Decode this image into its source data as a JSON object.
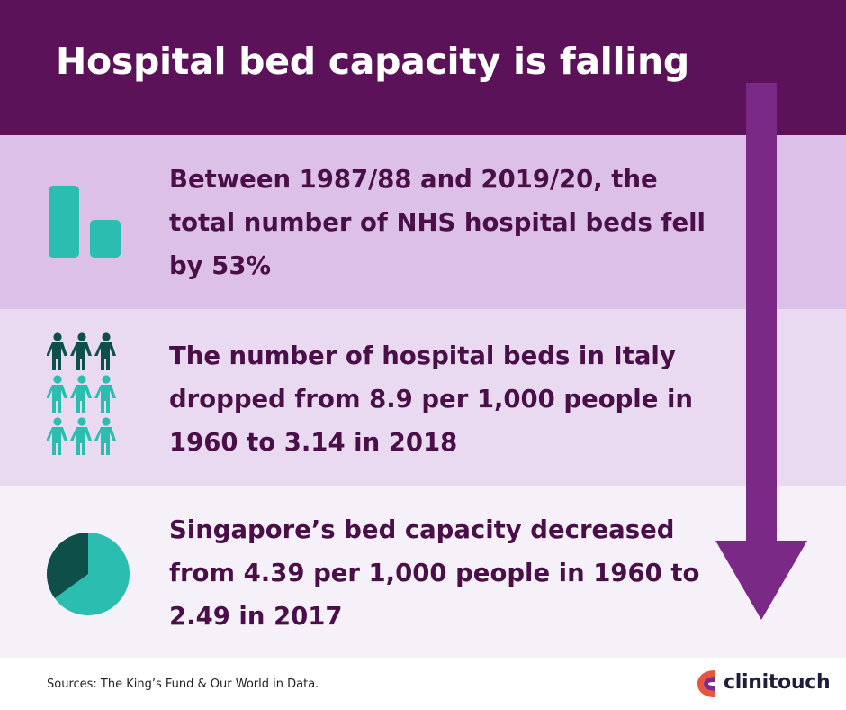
{
  "header": {
    "title": "Hospital bed capacity is falling"
  },
  "stats": [
    {
      "text": "Between 1987/88 and 2019/20, the total number of NHS hospital beds fell by 53%",
      "icon": "bar-chart-icon"
    },
    {
      "text": "The number of hospital beds in Italy dropped from 8.9 per 1,000 people in 1960 to 3.14 in 2018",
      "icon": "people-grid-icon"
    },
    {
      "text": "Singapore’s bed capacity decreased from 4.39 per 1,000 people in 1960 to 2.49 in 2017",
      "icon": "pie-chart-icon"
    }
  ],
  "footer": {
    "sources": "Sources: The King’s Fund & Our World in Data.",
    "brand": "clinitouch"
  },
  "colors": {
    "header_bg": "#5b1259",
    "band_1": "#dcc0e8",
    "band_2": "#e9d9f1",
    "band_3": "#f6f1f9",
    "text": "#4a0f48",
    "teal": "#2bbdb0",
    "dark_teal": "#0f4f4a",
    "arrow": "#7a2a86"
  }
}
